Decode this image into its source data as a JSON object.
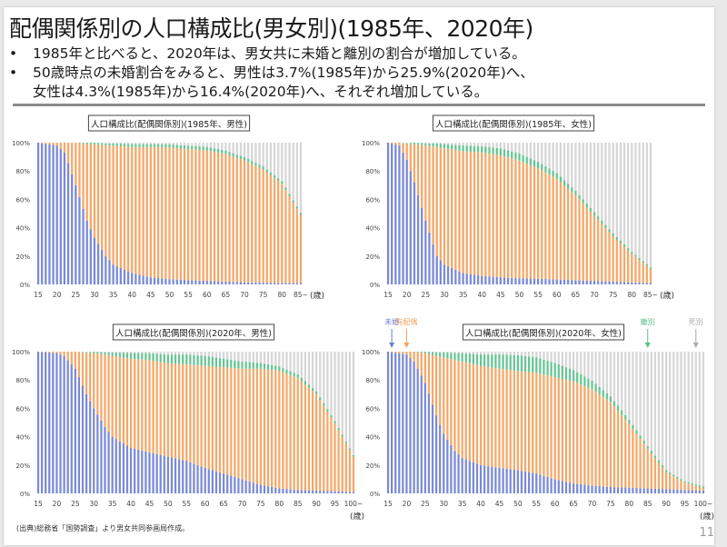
{
  "slide": {
    "title": "配偶関係別の人口構成比(男女別)(1985年、2020年)",
    "bullets": [
      "1985年と比べると、2020年は、男女共に未婚と離別の割合が増加している。",
      "50歳時点の未婚割合をみると、男性は3.7%(1985年)から25.9%(2020年)へ、",
      "女性は4.3%(1985年)から16.4%(2020年)へ、それぞれ増加している。"
    ],
    "bullet_marker": "•",
    "source_note": "(出典)総務省「国勢調査」より男女共同参画局作成。",
    "page_number": "11"
  },
  "legend": {
    "items": [
      {
        "label": "未婚",
        "color": "#6f7fd3"
      },
      {
        "label": "有配偶",
        "color": "#f5a05a"
      },
      {
        "label": "離別",
        "color": "#58c08a"
      },
      {
        "label": "死別",
        "color": "#c8c8c8"
      }
    ]
  },
  "chart_data": [
    {
      "type": "bar",
      "stacked": true,
      "title": "人口構成比(配偶関係別)(1985年、男性)",
      "xlabel": "(歳)",
      "ylabel": "",
      "ylim": [
        0,
        100
      ],
      "y_ticks": [
        "0%",
        "20%",
        "40%",
        "60%",
        "80%",
        "100%"
      ],
      "x_range": [
        15,
        85
      ],
      "x_ticks": [
        "15",
        "20",
        "25",
        "30",
        "35",
        "40",
        "45",
        "50",
        "55",
        "60",
        "65",
        "70",
        "75",
        "80",
        "85~"
      ],
      "series_order": [
        "未婚",
        "有配偶",
        "離別",
        "死別"
      ],
      "control_points": {
        "age": [
          15,
          20,
          22,
          25,
          28,
          30,
          33,
          35,
          40,
          45,
          50,
          55,
          60,
          65,
          70,
          75,
          80,
          85
        ],
        "unmarried": [
          100,
          98,
          93,
          70,
          45,
          33,
          20,
          14,
          8,
          5,
          3.7,
          3,
          2.5,
          2,
          1.5,
          1.2,
          1,
          1
        ],
        "married": [
          0,
          2,
          7,
          30,
          54,
          66,
          78,
          84,
          89,
          92,
          93,
          92.5,
          92,
          90,
          86,
          80,
          70,
          48
        ],
        "divorced": [
          0,
          0,
          0,
          0,
          1,
          1,
          1.5,
          1.5,
          2,
          2,
          2.2,
          2.3,
          2.5,
          2.5,
          2.2,
          2,
          1.8,
          1.5
        ]
      }
    },
    {
      "type": "bar",
      "stacked": true,
      "title": "人口構成比(配偶関係別)(1985年、女性)",
      "xlabel": "(歳)",
      "ylabel": "",
      "ylim": [
        0,
        100
      ],
      "y_ticks": [
        "0%",
        "20%",
        "40%",
        "60%",
        "80%",
        "100%"
      ],
      "x_range": [
        15,
        85
      ],
      "x_ticks": [
        "15",
        "20",
        "25",
        "30",
        "35",
        "40",
        "45",
        "50",
        "55",
        "60",
        "65",
        "70",
        "75",
        "80",
        "85~"
      ],
      "series_order": [
        "未婚",
        "有配偶",
        "離別",
        "死別"
      ],
      "control_points": {
        "age": [
          15,
          18,
          20,
          22,
          25,
          28,
          30,
          35,
          40,
          45,
          50,
          55,
          60,
          65,
          70,
          75,
          80,
          85
        ],
        "unmarried": [
          100,
          98,
          88,
          72,
          45,
          20,
          14,
          8,
          6,
          5,
          4.3,
          4,
          3.5,
          3,
          2.5,
          2,
          1.5,
          1
        ],
        "married": [
          0,
          2,
          11,
          27,
          53,
          77,
          82,
          86,
          87,
          86,
          83,
          78,
          71,
          60,
          46,
          32,
          20,
          10
        ],
        "divorced": [
          0,
          0,
          0.5,
          1,
          1.5,
          2.5,
          3,
          4,
          4.5,
          5,
          5,
          4.5,
          4,
          3,
          2.5,
          2,
          1.5,
          1
        ]
      }
    },
    {
      "type": "bar",
      "stacked": true,
      "title": "人口構成比(配偶関係別)(2020年、男性)",
      "xlabel": "(歳)",
      "ylabel": "",
      "ylim": [
        0,
        100
      ],
      "y_ticks": [
        "0%",
        "20%",
        "40%",
        "60%",
        "80%",
        "100%"
      ],
      "x_range": [
        15,
        100
      ],
      "x_ticks": [
        "15",
        "20",
        "25",
        "30",
        "35",
        "40",
        "45",
        "50",
        "55",
        "60",
        "65",
        "70",
        "75",
        "80",
        "85",
        "90",
        "95",
        "100~"
      ],
      "series_order": [
        "未婚",
        "有配偶",
        "離別",
        "死別"
      ],
      "control_points": {
        "age": [
          15,
          20,
          22,
          25,
          28,
          30,
          33,
          35,
          40,
          45,
          50,
          55,
          60,
          65,
          70,
          75,
          80,
          85,
          90,
          95,
          100
        ],
        "unmarried": [
          100,
          99,
          97,
          88,
          70,
          60,
          47,
          40,
          32,
          29,
          25.9,
          23,
          18,
          14,
          10,
          6,
          3.5,
          2.5,
          2,
          1.5,
          1
        ],
        "married": [
          0,
          1,
          3,
          12,
          29,
          39,
          51,
          57,
          63,
          65,
          66,
          68,
          72,
          75,
          78,
          82,
          83,
          79,
          68,
          48,
          25
        ],
        "divorced": [
          0,
          0,
          0,
          0,
          0.5,
          1,
          1.5,
          2.5,
          4,
          5,
          6,
          7,
          7,
          6,
          5,
          4,
          3,
          2.5,
          2,
          1.5,
          1
        ]
      }
    },
    {
      "type": "bar",
      "stacked": true,
      "title": "人口構成比(配偶関係別)(2020年、女性)",
      "xlabel": "(歳)",
      "ylabel": "",
      "ylim": [
        0,
        100
      ],
      "y_ticks": [
        "0%",
        "20%",
        "40%",
        "60%",
        "80%",
        "100%"
      ],
      "x_range": [
        15,
        100
      ],
      "x_ticks": [
        "15",
        "20",
        "25",
        "30",
        "35",
        "40",
        "45",
        "50",
        "55",
        "60",
        "65",
        "70",
        "75",
        "80",
        "85",
        "90",
        "95",
        "100~"
      ],
      "series_order": [
        "未婚",
        "有配偶",
        "離別",
        "死別"
      ],
      "legend_arrows": [
        {
          "label": "未婚",
          "age": 16
        },
        {
          "label": "有配偶",
          "age": 20
        },
        {
          "label": "離別",
          "age": 85
        },
        {
          "label": "死別",
          "age": 98
        }
      ],
      "control_points": {
        "age": [
          15,
          20,
          22,
          25,
          28,
          30,
          33,
          35,
          40,
          45,
          50,
          55,
          60,
          65,
          70,
          75,
          80,
          85,
          90,
          95,
          100
        ],
        "unmarried": [
          100,
          98,
          93,
          78,
          55,
          42,
          30,
          25,
          20,
          18,
          16.4,
          14,
          10,
          7,
          5.5,
          4.5,
          4,
          3.5,
          3,
          2.5,
          2
        ],
        "married": [
          0,
          2,
          7,
          21,
          42,
          54,
          64,
          68,
          70,
          70,
          70,
          71,
          72,
          72,
          68,
          60,
          45,
          28,
          12,
          5,
          2
        ],
        "divorced": [
          0,
          0,
          0,
          1,
          2.5,
          3.5,
          5,
          6,
          8,
          10,
          11,
          11,
          10,
          8,
          6,
          4,
          3,
          2,
          1.5,
          1,
          1
        ]
      }
    }
  ]
}
